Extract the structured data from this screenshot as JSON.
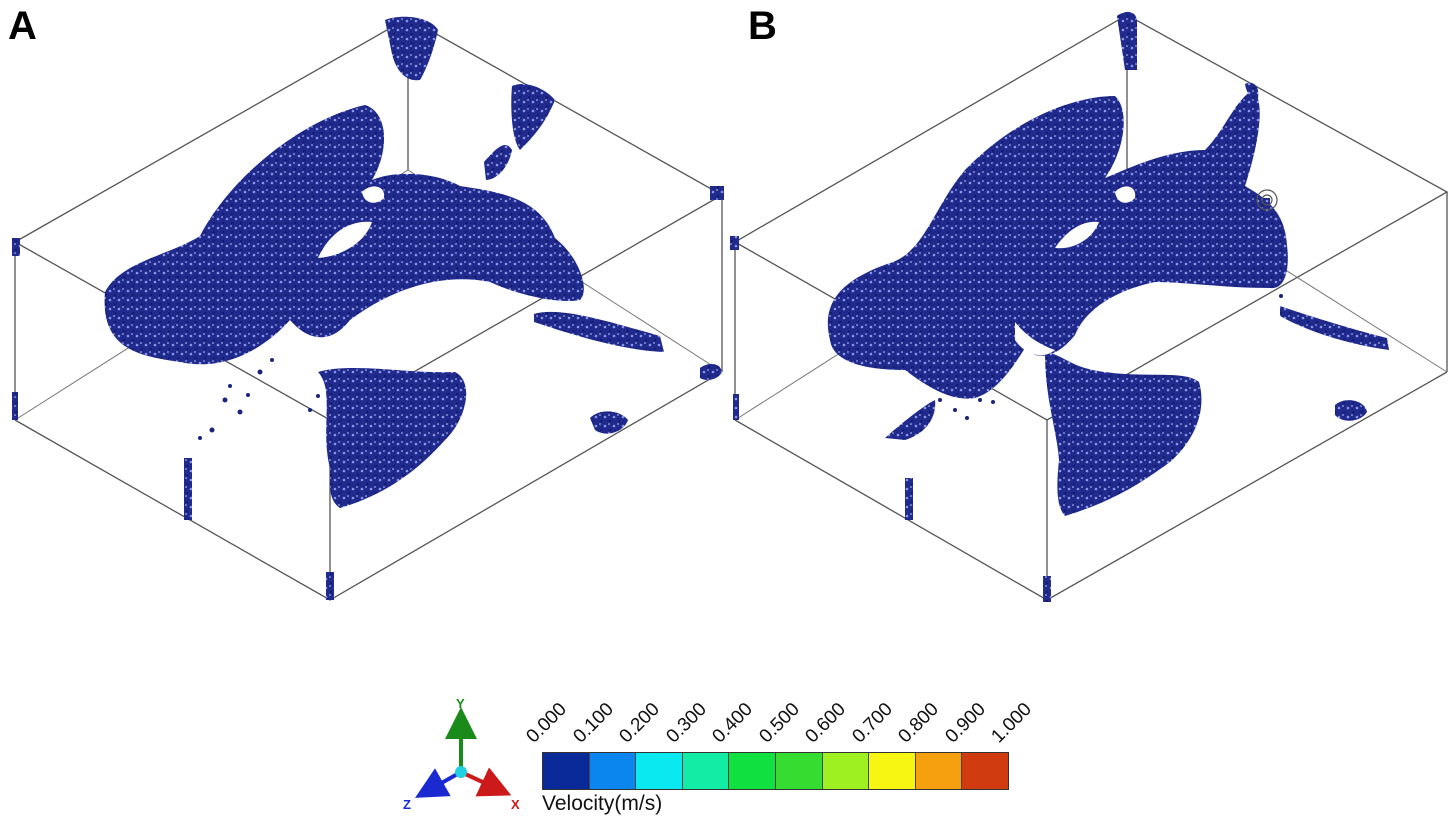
{
  "panels": [
    {
      "label": "A"
    },
    {
      "label": "B"
    }
  ],
  "colorbar": {
    "title": "Velocity(m/s)",
    "ticks": [
      "0.000",
      "0.100",
      "0.200",
      "0.300",
      "0.400",
      "0.500",
      "0.600",
      "0.700",
      "0.800",
      "0.900",
      "1.000"
    ],
    "colors": [
      "#0a2a9a",
      "#0a86ee",
      "#0ae8f0",
      "#12eca4",
      "#10e040",
      "#36dc30",
      "#9ef020",
      "#f6f612",
      "#f6a010",
      "#d03c10"
    ]
  },
  "axes_triad": {
    "x": "X",
    "y": "Y",
    "z": "Z",
    "x_color": "#cc1a1a",
    "y_color": "#1a8a1a",
    "z_color": "#1a2ad0"
  },
  "particle_color": "#1a237e"
}
